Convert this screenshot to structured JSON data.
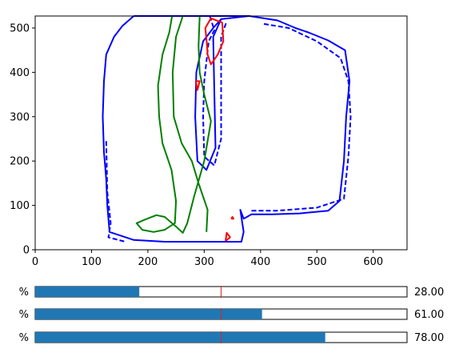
{
  "chart_data": {
    "type": "contour",
    "xlim": [
      0,
      660
    ],
    "ylim": [
      0,
      527
    ],
    "xticks": [
      0,
      100,
      200,
      300,
      400,
      500,
      600
    ],
    "yticks": [
      0,
      100,
      200,
      300,
      400,
      500
    ],
    "grid": false,
    "series": [
      {
        "color": "#0000ff",
        "style": "solid",
        "paths": [
          [
            [
              175,
              527
            ],
            [
              155,
              505
            ],
            [
              140,
              480
            ],
            [
              126,
              440
            ],
            [
              122,
              380
            ],
            [
              120,
              300
            ],
            [
              122,
              220
            ],
            [
              126,
              160
            ],
            [
              128,
              100
            ],
            [
              132,
              40
            ],
            [
              175,
              22
            ],
            [
              230,
              18
            ],
            [
              300,
              18
            ],
            [
              366,
              18
            ],
            [
              370,
              40
            ],
            [
              364,
              90
            ],
            [
              370,
              70
            ],
            [
              384,
              80
            ],
            [
              420,
              80
            ],
            [
              470,
              82
            ],
            [
              520,
              88
            ],
            [
              540,
              110
            ],
            [
              548,
              200
            ],
            [
              552,
              300
            ],
            [
              558,
              380
            ],
            [
              550,
              450
            ],
            [
              520,
              472
            ],
            [
              485,
              490
            ],
            [
              462,
              500
            ],
            [
              430,
              517
            ],
            [
              380,
              527
            ],
            [
              330,
              520
            ],
            [
              316,
              500
            ],
            [
              298,
              470
            ],
            [
              286,
              400
            ],
            [
              284,
              300
            ],
            [
              288,
              200
            ],
            [
              304,
              180
            ],
            [
              320,
              230
            ],
            [
              316,
              480
            ],
            [
              330,
              520
            ]
          ],
          [
            [
              175,
              527
            ],
            [
              230,
              527
            ],
            [
              250,
              527
            ],
            [
              320,
              527
            ],
            [
              380,
              527
            ]
          ]
        ]
      },
      {
        "color": "#0000ff",
        "style": "dashed",
        "paths": [
          [
            [
              310,
              527
            ],
            [
              318,
              495
            ],
            [
              308,
              470
            ],
            [
              300,
              380
            ],
            [
              298,
              300
            ],
            [
              300,
              210
            ],
            [
              318,
              190
            ],
            [
              330,
              250
            ],
            [
              330,
              480
            ],
            [
              340,
              515
            ]
          ],
          [
            [
              126,
              245
            ],
            [
              128,
              130
            ],
            [
              134,
              60
            ],
            [
              130,
              28
            ],
            [
              160,
              18
            ]
          ],
          [
            [
              384,
              88
            ],
            [
              430,
              88
            ],
            [
              500,
              95
            ],
            [
              548,
              115
            ],
            [
              556,
              210
            ],
            [
              560,
              300
            ],
            [
              556,
              380
            ],
            [
              542,
              432
            ],
            [
              500,
              470
            ],
            [
              450,
              500
            ],
            [
              402,
              510
            ]
          ]
        ]
      },
      {
        "color": "#008000",
        "style": "solid",
        "paths": [
          [
            [
              243,
              527
            ],
            [
              238,
              490
            ],
            [
              226,
              440
            ],
            [
              218,
              370
            ],
            [
              220,
              300
            ],
            [
              226,
              240
            ],
            [
              242,
              180
            ],
            [
              250,
              110
            ],
            [
              248,
              60
            ],
            [
              230,
              45
            ],
            [
              210,
              40
            ],
            [
              190,
              45
            ],
            [
              180,
              60
            ],
            [
              195,
              68
            ],
            [
              215,
              78
            ],
            [
              230,
              74
            ],
            [
              252,
              50
            ],
            [
              262,
              38
            ],
            [
              270,
              60
            ],
            [
              282,
              120
            ],
            [
              300,
              200
            ],
            [
              312,
              290
            ],
            [
              300,
              350
            ],
            [
              292,
              400
            ],
            [
              290,
              460
            ],
            [
              292,
              527
            ]
          ],
          [
            [
              262,
              527
            ],
            [
              250,
              480
            ],
            [
              244,
              400
            ],
            [
              246,
              300
            ],
            [
              260,
              240
            ],
            [
              278,
              200
            ],
            [
              290,
              150
            ],
            [
              306,
              90
            ],
            [
              304,
              40
            ]
          ]
        ]
      },
      {
        "color": "#ff0000",
        "style": "solid",
        "paths": [
          [
            [
              305,
              460
            ],
            [
              302,
              500
            ],
            [
              312,
              522
            ],
            [
              332,
              512
            ],
            [
              334,
              470
            ],
            [
              324,
              440
            ],
            [
              312,
              418
            ],
            [
              306,
              440
            ],
            [
              305,
              460
            ]
          ],
          [
            [
              285,
              380
            ],
            [
              288,
              360
            ],
            [
              292,
              380
            ],
            [
              285,
              380
            ]
          ],
          [
            [
              338,
              20
            ],
            [
              340,
              38
            ],
            [
              346,
              28
            ],
            [
              338,
              20
            ]
          ],
          [
            [
              348,
              70
            ],
            [
              350,
              74
            ],
            [
              352,
              70
            ],
            [
              348,
              70
            ]
          ]
        ]
      }
    ]
  },
  "sliders": [
    {
      "label": "%",
      "value": 28.0,
      "value_text": "28.00",
      "marker": 50
    },
    {
      "label": "%",
      "value": 61.0,
      "value_text": "61.00",
      "marker": 50
    },
    {
      "label": "%",
      "value": 78.0,
      "value_text": "78.00",
      "marker": 50
    }
  ],
  "colors": {
    "slider_fill": "#1f77b4",
    "slider_marker": "#d62728"
  }
}
